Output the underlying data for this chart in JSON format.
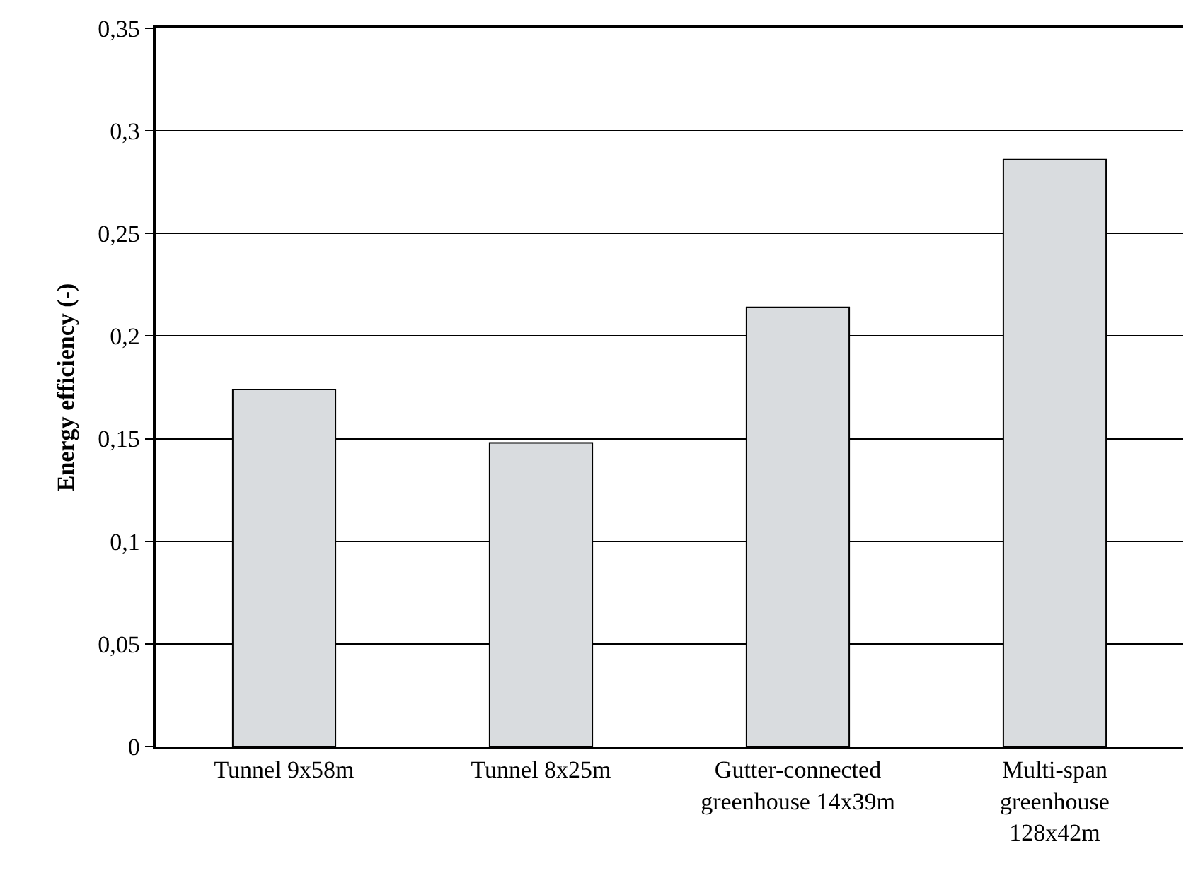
{
  "chart_data": {
    "type": "bar",
    "ylabel": "Energy efficiency (-)",
    "categories": [
      "Tunnel 9x58m",
      "Tunnel 8x25m",
      "Gutter-connected\ngreenhouse 14x39m",
      "Multi-span\ngreenhouse\n128x42m"
    ],
    "values": [
      0.174,
      0.148,
      0.214,
      0.286
    ],
    "color": "#d9dcdf",
    "ylim": [
      0,
      0.35
    ],
    "yticks": [
      {
        "value": 0,
        "label": "0"
      },
      {
        "value": 0.05,
        "label": "0,05"
      },
      {
        "value": 0.1,
        "label": "0,1"
      },
      {
        "value": 0.15,
        "label": "0,15"
      },
      {
        "value": 0.2,
        "label": "0,2"
      },
      {
        "value": 0.25,
        "label": "0,25"
      },
      {
        "value": 0.3,
        "label": "0,3"
      },
      {
        "value": 0.35,
        "label": "0,35"
      }
    ],
    "grid": "y"
  }
}
